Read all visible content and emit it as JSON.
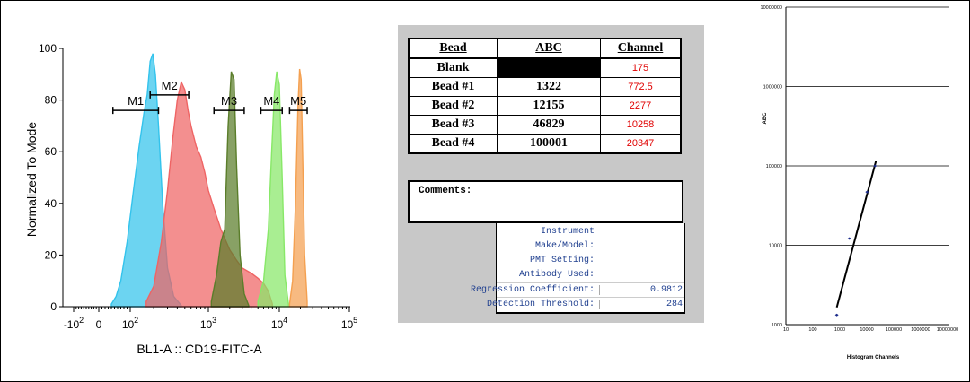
{
  "chart_data": [
    {
      "type": "area",
      "title": "",
      "xlabel": "BL1-A :: CD19-FITC-A",
      "ylabel": "Normalized To Mode",
      "xscale": "biexponential",
      "x_tick_labels": [
        "-10^2",
        "0",
        "10^2",
        "10^3",
        "10^4",
        "10^5"
      ],
      "x_tick_values": [
        -100,
        0,
        100,
        1000,
        10000,
        100000
      ],
      "ylim": [
        0,
        100
      ],
      "y_tick_labels": [
        "0",
        "20",
        "40",
        "60",
        "80",
        "100"
      ],
      "grid": false,
      "colors": {
        "cyan": "#33c3ec",
        "red": "#ef6464",
        "darkgreen": "#5a7d2a",
        "green": "#88e868",
        "orange": "#f4a050"
      },
      "series": [
        {
          "color": "#33c3ec",
          "x": [
            40,
            55,
            70,
            90,
            110,
            130,
            150,
            165,
            180,
            195,
            210,
            230,
            260,
            300,
            360,
            450
          ],
          "y": [
            1,
            4,
            10,
            25,
            45,
            62,
            75,
            82,
            95,
            98,
            90,
            70,
            40,
            15,
            4,
            0.5
          ]
        },
        {
          "color": "#ef6464",
          "x": [
            160,
            200,
            250,
            300,
            350,
            400,
            450,
            500,
            550,
            600,
            700,
            800,
            900,
            1000,
            1200,
            1500,
            2000,
            2500,
            3000,
            4000,
            5000,
            6000,
            7000,
            8000
          ],
          "y": [
            2,
            8,
            25,
            45,
            65,
            80,
            87,
            84,
            76,
            70,
            62,
            58,
            52,
            45,
            38,
            30,
            22,
            18,
            15,
            13,
            11,
            9,
            6,
            1
          ]
        },
        {
          "color": "#5a7d2a",
          "x": [
            1100,
            1300,
            1500,
            1700,
            1900,
            2100,
            2300,
            2500,
            2800,
            3200,
            3700
          ],
          "y": [
            2,
            12,
            25,
            30,
            70,
            91,
            88,
            55,
            20,
            5,
            0.5
          ]
        },
        {
          "color": "#88e868",
          "x": [
            5000,
            6000,
            7000,
            7800,
            8500,
            9200,
            10000,
            11000,
            12000,
            13500
          ],
          "y": [
            2,
            10,
            30,
            60,
            82,
            91,
            86,
            50,
            12,
            1
          ]
        },
        {
          "color": "#f4a050",
          "x": [
            14000,
            15500,
            17000,
            18500,
            19500,
            20500,
            21500,
            23000,
            25000
          ],
          "y": [
            1,
            10,
            40,
            78,
            92,
            88,
            60,
            20,
            2
          ]
        }
      ],
      "gates": [
        {
          "label": "M1",
          "x_range": [
            45,
            230
          ],
          "y": 76
        },
        {
          "label": "M2",
          "x_range": [
            180,
            560
          ],
          "y": 82
        },
        {
          "label": "M3",
          "x_range": [
            1200,
            3200
          ],
          "y": 76
        },
        {
          "label": "M4",
          "x_range": [
            5500,
            11000
          ],
          "y": 76
        },
        {
          "label": "M5",
          "x_range": [
            14000,
            25000
          ],
          "y": 76
        }
      ]
    },
    {
      "type": "table",
      "columns": [
        "Bead",
        "ABC",
        "Channel"
      ],
      "rows": [
        [
          "Blank",
          "",
          "175"
        ],
        [
          "Bead #1",
          "1322",
          "772.5"
        ],
        [
          "Bead #2",
          "12155",
          "2277"
        ],
        [
          "Bead #3",
          "46829",
          "10258"
        ],
        [
          "Bead #4",
          "100001",
          "20347"
        ]
      ],
      "comments_label": "Comments:",
      "instrument_fields": [
        {
          "label": "Instrument",
          "value": ""
        },
        {
          "label": "Make/Model:",
          "value": ""
        },
        {
          "label": "PMT Setting:",
          "value": ""
        },
        {
          "label": "Antibody Used:",
          "value": ""
        },
        {
          "label": "Regression Coefficient:",
          "value": "0.9812"
        },
        {
          "label": "Detection Threshold:",
          "value": "284"
        }
      ]
    },
    {
      "type": "scatter",
      "xlabel": "Histogram Channels",
      "ylabel": "ABC",
      "xscale": "log",
      "yscale": "log",
      "x_tick_labels": [
        "10",
        "100",
        "1000",
        "10000",
        "100000",
        "1000000",
        "10000000"
      ],
      "x_tick_values": [
        10,
        100,
        1000,
        10000,
        100000,
        1000000,
        10000000
      ],
      "y_tick_labels": [
        "1000",
        "10000",
        "100000",
        "1000000",
        "10000000"
      ],
      "y_tick_values": [
        1000,
        10000,
        100000,
        1000000,
        10000000
      ],
      "grid": "horizontal",
      "points": [
        {
          "x": 772.5,
          "y": 1322
        },
        {
          "x": 2277,
          "y": 12155
        },
        {
          "x": 10258,
          "y": 46829
        },
        {
          "x": 20347,
          "y": 100001
        }
      ],
      "fit_line": {
        "x": [
          772.5,
          22000
        ],
        "y": [
          1650,
          115000
        ]
      },
      "colors": {
        "points": "#1a2a8a",
        "line": "#000000"
      }
    }
  ]
}
